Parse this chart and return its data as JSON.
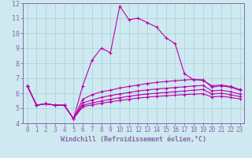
{
  "xlabel": "Windchill (Refroidissement éolien,°C)",
  "xlim": [
    -0.5,
    23.5
  ],
  "ylim": [
    4,
    12
  ],
  "xticks": [
    0,
    1,
    2,
    3,
    4,
    5,
    6,
    7,
    8,
    9,
    10,
    11,
    12,
    13,
    14,
    15,
    16,
    17,
    18,
    19,
    20,
    21,
    22,
    23
  ],
  "yticks": [
    4,
    5,
    6,
    7,
    8,
    9,
    10,
    11,
    12
  ],
  "background_color": "#ceeaf0",
  "line_color": "#bb00aa",
  "grid_color": "#aaccdd",
  "spine_color": "#8866aa",
  "lines": [
    [
      6.5,
      5.2,
      5.3,
      5.2,
      5.2,
      4.3,
      6.5,
      8.2,
      9.0,
      8.7,
      11.8,
      10.9,
      11.0,
      10.7,
      10.4,
      9.7,
      9.3,
      7.3,
      6.9,
      6.9,
      6.4,
      6.5,
      6.4,
      6.2
    ],
    [
      6.5,
      5.2,
      5.3,
      5.2,
      5.2,
      4.3,
      5.6,
      5.9,
      6.1,
      6.2,
      6.35,
      6.45,
      6.55,
      6.65,
      6.72,
      6.78,
      6.83,
      6.88,
      6.92,
      6.85,
      6.5,
      6.55,
      6.45,
      6.25
    ],
    [
      6.5,
      5.2,
      5.3,
      5.2,
      5.2,
      4.3,
      5.35,
      5.55,
      5.72,
      5.85,
      5.95,
      6.05,
      6.15,
      6.22,
      6.28,
      6.33,
      6.38,
      6.43,
      6.48,
      6.52,
      6.15,
      6.2,
      6.1,
      5.95
    ],
    [
      6.5,
      5.2,
      5.3,
      5.2,
      5.2,
      4.3,
      5.2,
      5.35,
      5.48,
      5.6,
      5.7,
      5.8,
      5.88,
      5.95,
      6.0,
      6.05,
      6.1,
      6.15,
      6.2,
      6.25,
      5.95,
      6.0,
      5.9,
      5.78
    ],
    [
      6.5,
      5.2,
      5.3,
      5.2,
      5.2,
      4.3,
      5.1,
      5.22,
      5.33,
      5.43,
      5.52,
      5.6,
      5.68,
      5.74,
      5.79,
      5.83,
      5.87,
      5.91,
      5.94,
      5.97,
      5.75,
      5.8,
      5.72,
      5.62
    ]
  ],
  "tick_fontsize": 6,
  "label_fontsize": 6
}
